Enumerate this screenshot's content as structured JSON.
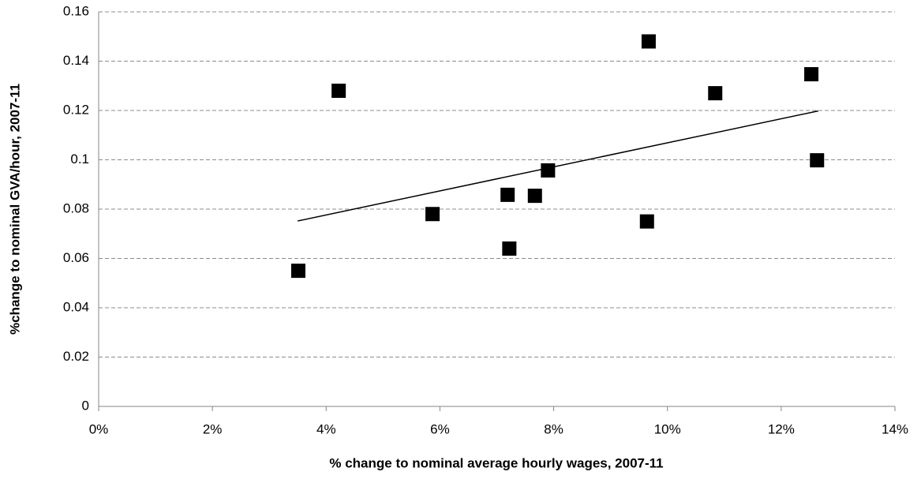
{
  "chart_data": {
    "type": "scatter",
    "x_label": "% change to nominal average hourly wages, 2007-11",
    "y_label": "%change to nominal  GVA/hour, 2007-11",
    "color": "#000000",
    "x": [
      3.51,
      4.22,
      5.87,
      7.19,
      7.22,
      7.67,
      7.9,
      9.64,
      9.67,
      10.84,
      12.53,
      12.63
    ],
    "values": [
      0.055,
      0.128,
      0.078,
      0.0858,
      0.064,
      0.0854,
      0.0957,
      0.075,
      0.148,
      0.127,
      0.1347,
      0.0998
    ],
    "trendline": {
      "x": [
        3.5,
        12.65
      ],
      "values": [
        0.0752,
        0.1198
      ]
    },
    "xlim": [
      0,
      14
    ],
    "xticks": [
      {
        "value": 0,
        "label": "0%"
      },
      {
        "value": 2,
        "label": "2%"
      },
      {
        "value": 4,
        "label": "4%"
      },
      {
        "value": 6,
        "label": "6%"
      },
      {
        "value": 8,
        "label": "8%"
      },
      {
        "value": 10,
        "label": "10%"
      },
      {
        "value": 12,
        "label": "12%"
      },
      {
        "value": 14,
        "label": "14%"
      }
    ],
    "ylim": [
      0,
      0.16
    ],
    "yticks": [
      0,
      0.02,
      0.04,
      0.06,
      0.08,
      0.1,
      0.12,
      0.14,
      0.16
    ],
    "grid": true
  }
}
